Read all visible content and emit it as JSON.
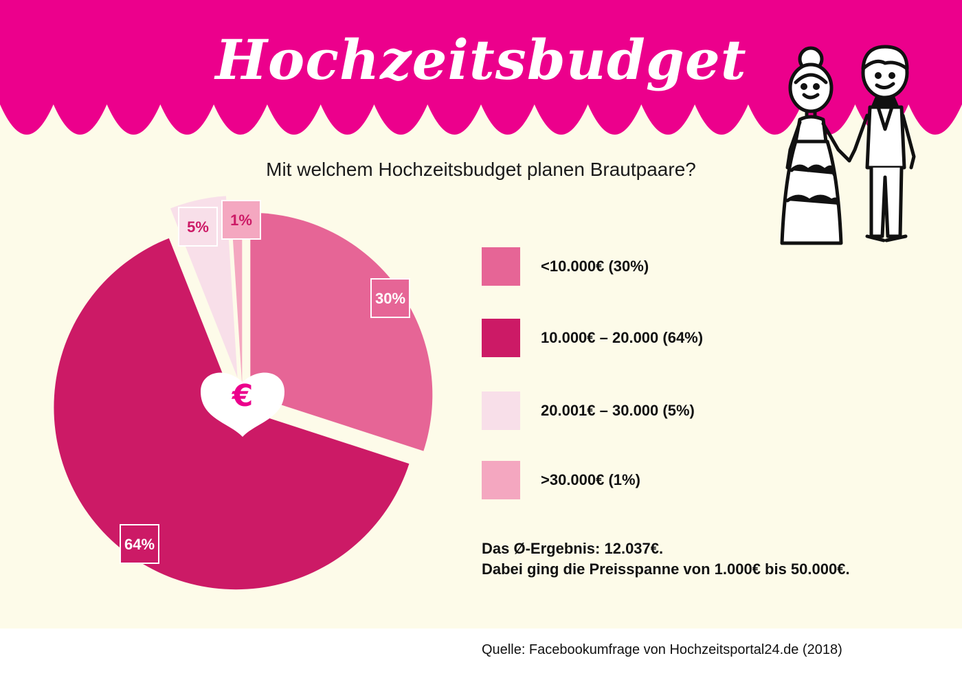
{
  "header": {
    "title": "Hochzeitsbudget",
    "banner_color": "#ec008c"
  },
  "subtitle": "Mit welchem Hochzeitsbudget planen Brautpaare?",
  "chart_data": {
    "type": "pie",
    "title": "Mit welchem Hochzeitsbudget planen Brautpaare?",
    "categories": [
      "<10.000€",
      "10.000€ – 20.000",
      "20.001€ – 30.000",
      ">30.000€"
    ],
    "values": [
      30,
      64,
      5,
      1
    ],
    "unit": "%",
    "data_labels": [
      "30%",
      "64%",
      "5%",
      "1%"
    ],
    "colors": [
      "#e66596",
      "#cc1a66",
      "#f8dfe9",
      "#f4a7c0"
    ],
    "label_text_colors": [
      "#ffffff",
      "#ffffff",
      "#cc1a66",
      "#cc1a66"
    ],
    "legend_placement": "right",
    "center_symbol": "€"
  },
  "legend": [
    {
      "label": "<10.000€ (30%)",
      "color": "#e66596"
    },
    {
      "label": "10.000€ – 20.000 (64%)",
      "color": "#cc1a66"
    },
    {
      "label": "20.001€ – 30.000 (5%)",
      "color": "#f8dfe9"
    },
    {
      "label": ">30.000€ (1%)",
      "color": "#f4a7c0"
    }
  ],
  "summary": {
    "line1": "Das Ø-Ergebnis: 12.037€.",
    "line2": "Dabei ging die Preisspanne von 1.000€ bis 50.000€."
  },
  "source": "Quelle: Facebookumfrage von Hochzeitsportal24.de (2018)",
  "icons": {
    "heart": "heart-icon",
    "euro": "euro-icon",
    "couple": "wedding-couple-icon"
  }
}
